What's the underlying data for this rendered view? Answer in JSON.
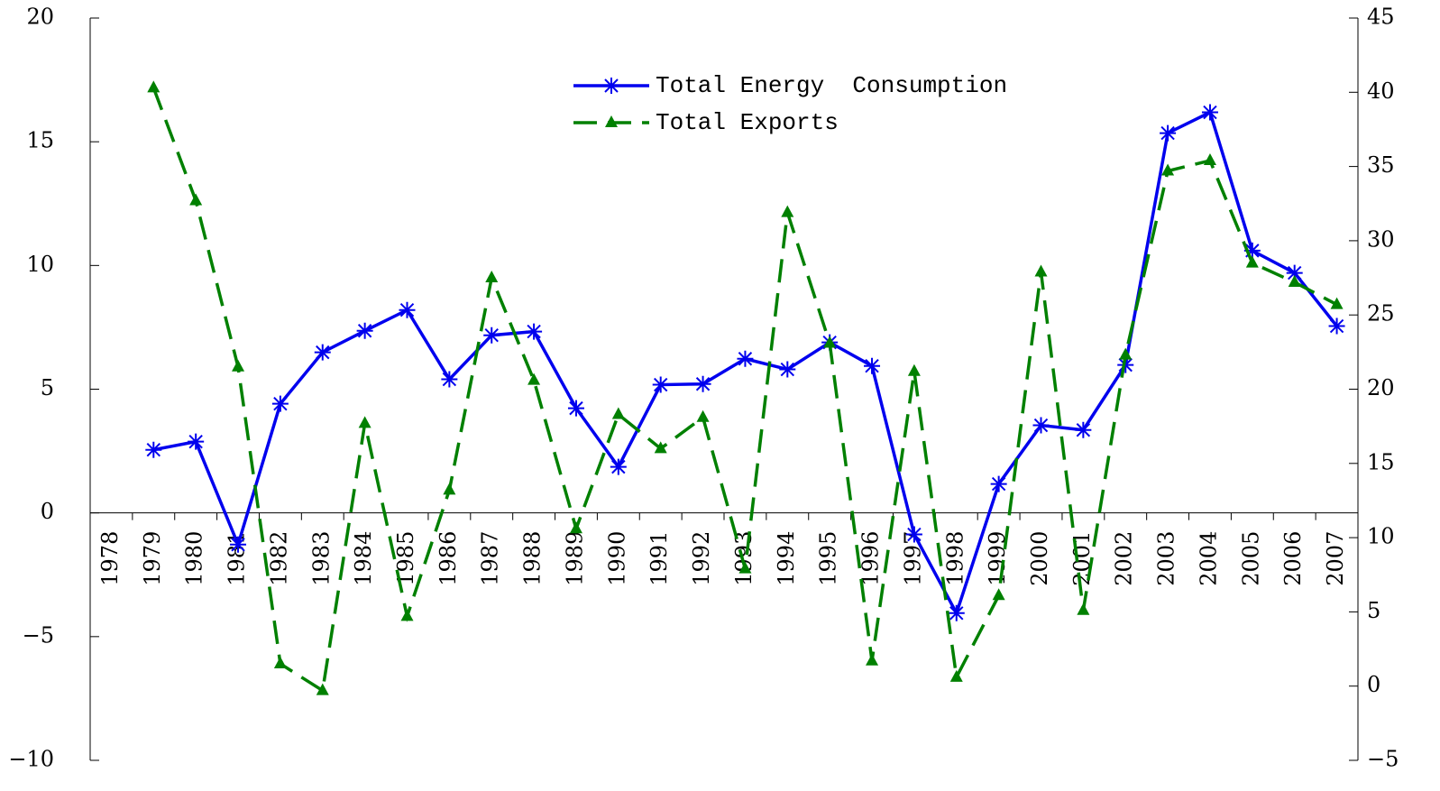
{
  "chart_data": {
    "type": "line",
    "categories": [
      "1978",
      "1979",
      "1980",
      "1981",
      "1982",
      "1983",
      "1984",
      "1985",
      "1986",
      "1987",
      "1988",
      "1989",
      "1990",
      "1991",
      "1992",
      "1993",
      "1994",
      "1995",
      "1996",
      "1997",
      "1998",
      "1999",
      "2000",
      "2001",
      "2002",
      "2003",
      "2004",
      "2005",
      "2006",
      "2007"
    ],
    "series": [
      {
        "name": "Total Energy  Consumption",
        "color": "#0000ee",
        "marker": "asterisk",
        "dash": "solid",
        "values": [
          null,
          2.55,
          2.88,
          -1.28,
          4.41,
          6.49,
          7.36,
          8.2,
          5.4,
          7.18,
          7.33,
          4.23,
          1.86,
          5.18,
          5.21,
          6.23,
          5.8,
          6.89,
          5.94,
          -0.87,
          -4.05,
          1.17,
          3.54,
          3.35,
          5.98,
          15.35,
          16.19,
          10.6,
          9.7,
          7.55
        ]
      },
      {
        "name": "Total Exports",
        "color": "#008000",
        "marker": "triangle",
        "dash": "dashed",
        "axis": "y2",
        "values": [
          null,
          40.3,
          32.7,
          21.5,
          1.5,
          -0.3,
          17.7,
          4.7,
          13.2,
          27.5,
          20.6,
          10.6,
          18.3,
          16.0,
          18.1,
          7.9,
          31.9,
          23.1,
          1.7,
          21.2,
          0.6,
          6.1,
          27.9,
          5.1,
          22.3,
          34.7,
          35.4,
          28.5,
          27.2,
          25.7
        ]
      }
    ],
    "ylim": [
      -10,
      20
    ],
    "yticks": [
      {
        "value": -10,
        "label": "−10"
      },
      {
        "value": -5,
        "label": "−5"
      },
      0,
      5,
      10,
      15,
      20
    ],
    "y2lim": [
      -5,
      45
    ],
    "y2ticks": [
      {
        "value": -5,
        "label": "−5"
      },
      0,
      5,
      10,
      15,
      20,
      25,
      30,
      35,
      40,
      45
    ],
    "legend": "top"
  }
}
